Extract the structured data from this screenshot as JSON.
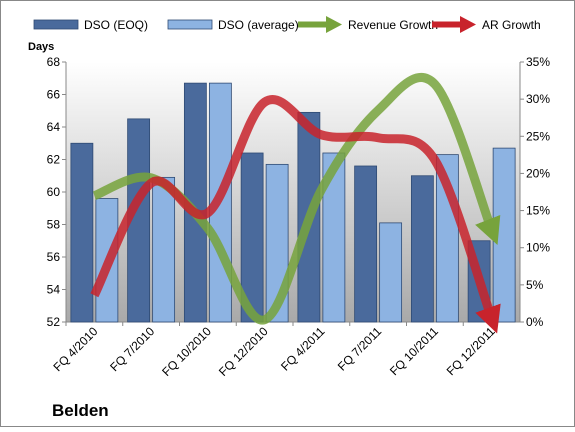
{
  "chart_data": {
    "type": "bar-line",
    "title": "Belden",
    "y_axis_label": "Days",
    "categories": [
      "FQ 4/2010",
      "FQ 7/2010",
      "FQ 10/2010",
      "FQ 12/2010",
      "FQ 4/2011",
      "FQ 7/2011",
      "FQ 10/2011",
      "FQ 12/2011"
    ],
    "series": [
      {
        "name": "DSO (EOQ)",
        "type": "bar",
        "color": "#4a6a9c",
        "values": [
          63.0,
          64.5,
          66.7,
          62.4,
          64.9,
          61.6,
          61.0,
          57.0
        ]
      },
      {
        "name": "DSO (average)",
        "type": "bar",
        "color": "#8db3e2",
        "values": [
          59.6,
          60.9,
          66.7,
          61.7,
          62.4,
          58.1,
          62.3,
          62.7
        ]
      },
      {
        "name": "Revenue Growth",
        "type": "line",
        "axis": "y2",
        "color": "#77a33c",
        "values": [
          17,
          19.4,
          12.6,
          0.3,
          17.8,
          28.5,
          32,
          12.4
        ]
      },
      {
        "name": "AR Growth",
        "type": "line",
        "axis": "y2",
        "color": "#c8232c",
        "values": [
          3.6,
          18.7,
          14.7,
          29.6,
          25.2,
          24.8,
          21.8,
          0.5
        ]
      }
    ],
    "ylim": [
      52,
      68
    ],
    "yticks": [
      52,
      54,
      56,
      58,
      60,
      62,
      64,
      66,
      68
    ],
    "y2lim": [
      0,
      35
    ],
    "y2ticks": [
      {
        "value": 0,
        "label": "0%"
      },
      {
        "value": 5,
        "label": "5%"
      },
      {
        "value": 10,
        "label": "10%"
      },
      {
        "value": 15,
        "label": "15%"
      },
      {
        "value": 20,
        "label": "20%"
      },
      {
        "value": 25,
        "label": "25%"
      },
      {
        "value": 30,
        "label": "30%"
      },
      {
        "value": 35,
        "label": "35%"
      }
    ],
    "grid": false
  }
}
